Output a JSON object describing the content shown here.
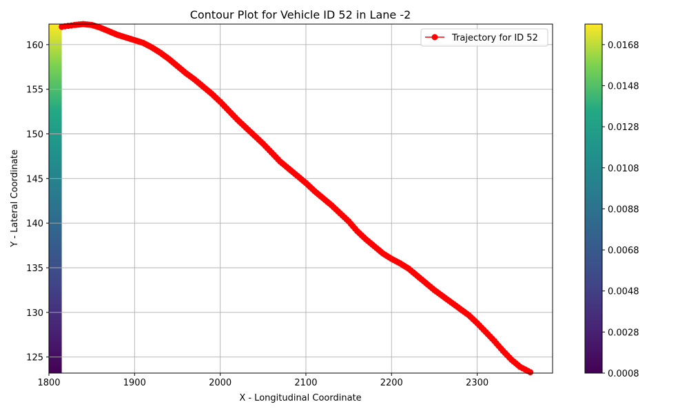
{
  "chart_data": {
    "type": "contour",
    "title": "Contour Plot for Vehicle ID 52 in Lane -2",
    "xlabel": "X - Longitudinal Coordinate",
    "ylabel": "Y - Lateral Coordinate",
    "xlim": [
      1800,
      2388
    ],
    "ylim": [
      123.2,
      162.3
    ],
    "xticks": [
      1800,
      1900,
      2000,
      2100,
      2200,
      2300
    ],
    "yticks": [
      125,
      130,
      135,
      140,
      145,
      150,
      155,
      160
    ],
    "grid": true,
    "legend": {
      "position": "top-right",
      "entries": [
        "Trajectory for ID 52"
      ]
    },
    "series": [
      {
        "name": "Trajectory for ID 52",
        "color": "#ff0000",
        "marker": "circle",
        "x": [
          1815,
          1830,
          1840,
          1850,
          1860,
          1870,
          1880,
          1890,
          1900,
          1910,
          1920,
          1930,
          1940,
          1950,
          1960,
          1970,
          1980,
          1990,
          2000,
          2010,
          2020,
          2030,
          2040,
          2050,
          2060,
          2070,
          2080,
          2090,
          2100,
          2110,
          2120,
          2130,
          2140,
          2150,
          2160,
          2170,
          2180,
          2190,
          2200,
          2210,
          2220,
          2230,
          2240,
          2250,
          2260,
          2270,
          2280,
          2290,
          2300,
          2310,
          2320,
          2330,
          2340,
          2350,
          2362
        ],
        "y": [
          162.0,
          162.2,
          162.3,
          162.2,
          161.9,
          161.5,
          161.1,
          160.8,
          160.5,
          160.2,
          159.7,
          159.1,
          158.4,
          157.6,
          156.8,
          156.1,
          155.3,
          154.5,
          153.6,
          152.6,
          151.6,
          150.7,
          149.8,
          148.9,
          147.9,
          146.9,
          146.1,
          145.3,
          144.5,
          143.6,
          142.8,
          142.0,
          141.1,
          140.2,
          139.1,
          138.2,
          137.4,
          136.6,
          136.0,
          135.5,
          134.9,
          134.1,
          133.3,
          132.5,
          131.8,
          131.1,
          130.4,
          129.7,
          128.8,
          127.8,
          126.8,
          125.7,
          124.7,
          123.9,
          123.3
        ]
      }
    ],
    "colorbar": {
      "range": [
        0.0008,
        0.0178
      ],
      "ticks": [
        "0.0008",
        "0.0028",
        "0.0048",
        "0.0068",
        "0.0088",
        "0.0108",
        "0.0128",
        "0.0148",
        "0.0168"
      ],
      "colormap": "viridis"
    },
    "contour_band": {
      "x_range": [
        1800,
        1815
      ],
      "value_at_bottom": 0.0008,
      "value_at_top": 0.0178
    }
  }
}
